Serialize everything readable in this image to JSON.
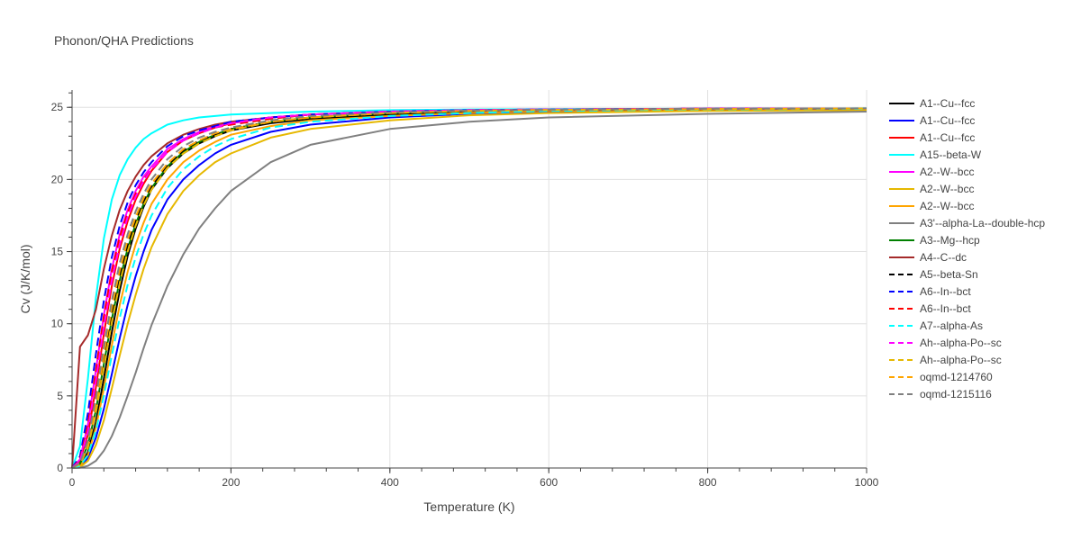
{
  "chart_data": {
    "type": "line",
    "title": "Phonon/QHA Predictions",
    "xlabel": "Temperature (K)",
    "ylabel": "Cv (J/K/mol)",
    "xlim": [
      0,
      1000
    ],
    "ylim": [
      0,
      26.2
    ],
    "xticks": [
      0,
      200,
      400,
      600,
      800,
      1000
    ],
    "yticks": [
      0,
      5,
      10,
      15,
      20,
      25
    ],
    "grid": true,
    "legend_position": "right",
    "x": [
      0,
      10,
      20,
      30,
      40,
      50,
      60,
      70,
      80,
      90,
      100,
      120,
      140,
      160,
      180,
      200,
      250,
      300,
      400,
      500,
      600,
      800,
      1000
    ],
    "series": [
      {
        "name": "A1--Cu--fcc",
        "color": "#000000",
        "dash": "solid",
        "values": [
          0,
          0.2,
          1.1,
          3.2,
          6.2,
          9.4,
          12.3,
          14.7,
          16.6,
          18.1,
          19.3,
          20.8,
          21.8,
          22.5,
          23.0,
          23.4,
          23.9,
          24.2,
          24.5,
          24.7,
          24.8,
          24.85,
          24.9
        ]
      },
      {
        "name": "A1--Cu--fcc",
        "color": "#0000ff",
        "dash": "solid",
        "values": [
          0,
          0.1,
          0.7,
          2.1,
          4.1,
          6.5,
          9.0,
          11.3,
          13.3,
          15.0,
          16.5,
          18.6,
          20.0,
          21.0,
          21.8,
          22.4,
          23.3,
          23.8,
          24.3,
          24.55,
          24.7,
          24.8,
          24.85
        ]
      },
      {
        "name": "A1--Cu--fcc",
        "color": "#ff0000",
        "dash": "solid",
        "values": [
          0,
          0.5,
          2.3,
          5.6,
          9.3,
          12.6,
          15.2,
          17.1,
          18.6,
          19.7,
          20.6,
          21.9,
          22.7,
          23.2,
          23.6,
          23.9,
          24.3,
          24.5,
          24.7,
          24.8,
          24.85,
          24.9,
          24.92
        ]
      },
      {
        "name": "A15--beta-W",
        "color": "#00ffff",
        "dash": "solid",
        "values": [
          0,
          1.5,
          6.2,
          11.8,
          15.9,
          18.6,
          20.3,
          21.4,
          22.2,
          22.8,
          23.2,
          23.8,
          24.1,
          24.3,
          24.4,
          24.5,
          24.6,
          24.7,
          24.8,
          24.85,
          24.88,
          24.9,
          24.93
        ]
      },
      {
        "name": "A2--W--bcc",
        "color": "#ff00ff",
        "dash": "solid",
        "values": [
          0,
          0.6,
          3.0,
          6.8,
          10.6,
          13.8,
          16.2,
          17.9,
          19.2,
          20.2,
          20.9,
          22.1,
          22.8,
          23.3,
          23.7,
          23.9,
          24.3,
          24.5,
          24.7,
          24.8,
          24.85,
          24.9,
          24.92
        ]
      },
      {
        "name": "A2--W--bcc",
        "color": "#e6b800",
        "dash": "solid",
        "values": [
          0,
          0.05,
          0.5,
          1.6,
          3.3,
          5.5,
          7.8,
          10.0,
          12.0,
          13.8,
          15.3,
          17.6,
          19.2,
          20.3,
          21.2,
          21.8,
          22.9,
          23.5,
          24.1,
          24.45,
          24.6,
          24.75,
          24.8
        ]
      },
      {
        "name": "A2--W--bcc",
        "color": "#ffa500",
        "dash": "solid",
        "values": [
          0,
          0.15,
          0.9,
          2.8,
          5.5,
          8.5,
          11.3,
          13.6,
          15.5,
          17.0,
          18.3,
          20.0,
          21.2,
          22.0,
          22.6,
          23.1,
          23.7,
          24.1,
          24.4,
          24.6,
          24.75,
          24.85,
          24.9
        ]
      },
      {
        "name": "A3'--alpha-La--double-hcp",
        "color": "#808080",
        "dash": "solid",
        "values": [
          0,
          0.02,
          0.15,
          0.5,
          1.2,
          2.2,
          3.5,
          5.0,
          6.6,
          8.3,
          9.9,
          12.6,
          14.8,
          16.6,
          18.0,
          19.2,
          21.2,
          22.4,
          23.5,
          24.0,
          24.3,
          24.55,
          24.7
        ]
      },
      {
        "name": "A3--Mg--hcp",
        "color": "#008000",
        "dash": "solid",
        "values": [
          0,
          0.3,
          1.6,
          4.0,
          7.2,
          10.3,
          13.0,
          15.2,
          16.9,
          18.3,
          19.4,
          20.9,
          21.9,
          22.6,
          23.1,
          23.5,
          24.0,
          24.3,
          24.6,
          24.75,
          24.82,
          24.88,
          24.92
        ]
      },
      {
        "name": "A4--C--dc",
        "color": "#a52a2a",
        "dash": "solid",
        "values": [
          0,
          8.4,
          9.2,
          11.0,
          13.8,
          16.1,
          17.9,
          19.2,
          20.2,
          21.0,
          21.6,
          22.5,
          23.1,
          23.5,
          23.8,
          24.0,
          24.3,
          24.5,
          24.65,
          24.75,
          24.82,
          24.88,
          24.92
        ]
      },
      {
        "name": "A5--beta-Sn",
        "color": "#000000",
        "dash": "dash",
        "values": [
          0,
          0.3,
          1.6,
          4.3,
          7.6,
          10.8,
          13.4,
          15.5,
          17.2,
          18.5,
          19.5,
          21.0,
          22.0,
          22.7,
          23.1,
          23.5,
          24.0,
          24.3,
          24.6,
          24.75,
          24.82,
          24.88,
          24.92
        ]
      },
      {
        "name": "A6--In--bct",
        "color": "#0000ff",
        "dash": "dash",
        "values": [
          0,
          0.8,
          3.8,
          7.9,
          11.6,
          14.6,
          16.8,
          18.4,
          19.6,
          20.5,
          21.2,
          22.3,
          23.0,
          23.4,
          23.7,
          24.0,
          24.3,
          24.5,
          24.7,
          24.8,
          24.85,
          24.9,
          24.92
        ]
      },
      {
        "name": "A6--In--bct",
        "color": "#ff0000",
        "dash": "dash",
        "values": [
          0,
          0.6,
          3.0,
          6.8,
          10.5,
          13.6,
          16.0,
          17.7,
          19.0,
          20.0,
          20.7,
          21.9,
          22.7,
          23.2,
          23.6,
          23.8,
          24.2,
          24.5,
          24.7,
          24.8,
          24.85,
          24.9,
          24.92
        ]
      },
      {
        "name": "A7--alpha-As",
        "color": "#00ffff",
        "dash": "dash",
        "values": [
          0,
          0.15,
          0.9,
          2.6,
          5.0,
          7.8,
          10.4,
          12.7,
          14.6,
          16.2,
          17.5,
          19.4,
          20.7,
          21.6,
          22.3,
          22.8,
          23.6,
          24.0,
          24.4,
          24.6,
          24.75,
          24.85,
          24.9
        ]
      },
      {
        "name": "Ah--alpha-Po--sc",
        "color": "#ff00ff",
        "dash": "dash",
        "values": [
          0,
          0.5,
          2.6,
          6.1,
          9.8,
          13.0,
          15.5,
          17.4,
          18.8,
          19.9,
          20.7,
          21.9,
          22.7,
          23.2,
          23.6,
          23.9,
          24.3,
          24.5,
          24.7,
          24.8,
          24.85,
          24.9,
          24.92
        ]
      },
      {
        "name": "Ah--alpha-Po--sc",
        "color": "#e6b800",
        "dash": "dash",
        "values": [
          0,
          0.25,
          1.4,
          3.9,
          7.0,
          10.1,
          12.8,
          15.0,
          16.8,
          18.2,
          19.3,
          20.8,
          21.8,
          22.5,
          23.0,
          23.4,
          24.0,
          24.3,
          24.6,
          24.75,
          24.82,
          24.88,
          24.92
        ]
      },
      {
        "name": "oqmd-1214760",
        "color": "#ffa500",
        "dash": "dash",
        "values": [
          0,
          0.3,
          1.7,
          4.5,
          7.9,
          11.1,
          13.7,
          15.8,
          17.4,
          18.7,
          19.7,
          21.1,
          22.1,
          22.7,
          23.2,
          23.5,
          24.0,
          24.3,
          24.6,
          24.75,
          24.82,
          24.88,
          24.92
        ]
      },
      {
        "name": "oqmd-1215116",
        "color": "#808080",
        "dash": "dash",
        "values": [
          0,
          0.35,
          1.9,
          4.9,
          8.4,
          11.6,
          14.2,
          16.2,
          17.8,
          19.0,
          20.0,
          21.4,
          22.3,
          22.9,
          23.3,
          23.6,
          24.1,
          24.4,
          24.65,
          24.78,
          24.84,
          24.9,
          24.93
        ]
      }
    ]
  }
}
